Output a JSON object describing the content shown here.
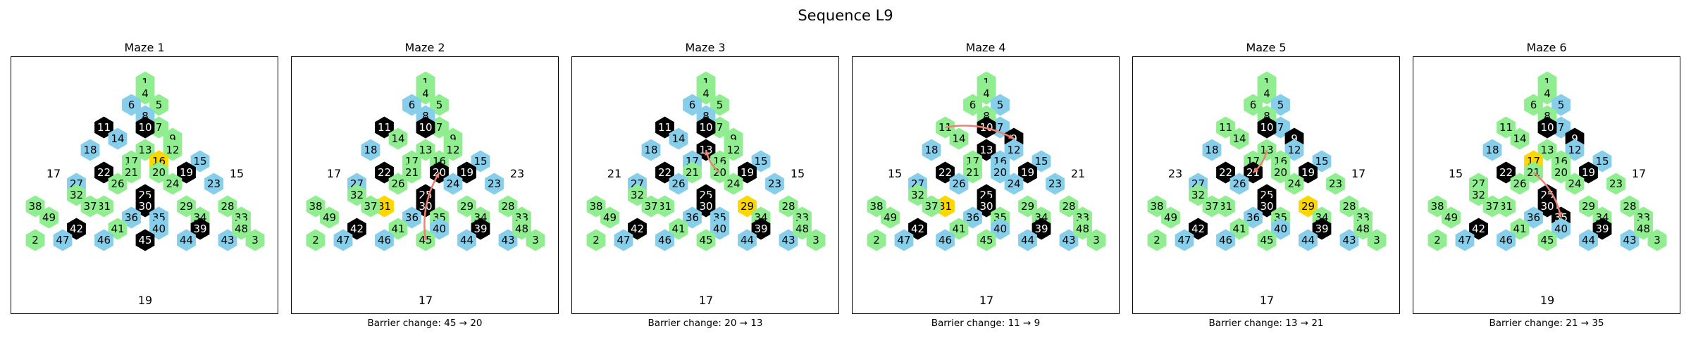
{
  "figure_title": "Sequence L9",
  "colors": {
    "green": "#90EE90",
    "blue": "#87CEEB",
    "black": "#000000",
    "yellow": "#FFD700",
    "arrow": "#F08070"
  },
  "panels": [
    {
      "title": "Maze 1",
      "caption": "",
      "side_left": "17",
      "side_right": "15",
      "side_bottom": "19",
      "blue": [
        6,
        8,
        14,
        18,
        27,
        36,
        47,
        46,
        40,
        44,
        43,
        15,
        23,
        35
      ],
      "black": [
        10,
        11,
        22,
        25,
        19,
        30,
        42,
        45,
        39
      ],
      "yellow": [
        16
      ],
      "arrow": null
    },
    {
      "title": "Maze 2",
      "caption": "Barrier change: 45 → 20",
      "side_left": "17",
      "side_right": "23",
      "side_bottom": "17",
      "blue": [
        6,
        8,
        18,
        27,
        36,
        47,
        46,
        15,
        24,
        40,
        44,
        43,
        23
      ],
      "black": [
        10,
        11,
        22,
        25,
        20,
        19,
        30,
        42,
        39
      ],
      "yellow": [
        31
      ],
      "arrow": [
        45,
        20
      ]
    },
    {
      "title": "Maze 3",
      "caption": "Barrier change: 20 → 13",
      "side_left": "21",
      "side_right": "15",
      "side_bottom": "17",
      "blue": [
        6,
        8,
        14,
        18,
        17,
        27,
        26,
        36,
        47,
        46,
        40,
        44,
        43,
        15,
        23,
        35
      ],
      "black": [
        10,
        11,
        13,
        22,
        25,
        19,
        30,
        42,
        39
      ],
      "yellow": [
        29
      ],
      "arrow": [
        20,
        13
      ]
    },
    {
      "title": "Maze 4",
      "caption": "Barrier change: 11 → 9",
      "side_left": "15",
      "side_right": "21",
      "side_bottom": "17",
      "blue": [
        5,
        7,
        18,
        12,
        16,
        15,
        20,
        24,
        23,
        27,
        26,
        36,
        47,
        46,
        40,
        44,
        43
      ],
      "black": [
        10,
        9,
        13,
        22,
        25,
        19,
        30,
        42,
        39
      ],
      "yellow": [
        31
      ],
      "arrow": [
        11,
        9
      ]
    },
    {
      "title": "Maze 5",
      "caption": "Barrier change: 13 → 21",
      "side_left": "23",
      "side_right": "17",
      "side_bottom": "17",
      "blue": [
        5,
        7,
        18,
        12,
        15,
        27,
        26,
        36,
        47,
        46,
        40,
        44,
        43
      ],
      "black": [
        10,
        9,
        22,
        21,
        25,
        19,
        30,
        42,
        39
      ],
      "yellow": [
        29
      ],
      "arrow": [
        13,
        21
      ]
    },
    {
      "title": "Maze 6",
      "caption": "Barrier change: 21 → 35",
      "side_left": "15",
      "side_right": "17",
      "side_bottom": "19",
      "blue": [
        5,
        7,
        18,
        12,
        15,
        36,
        47,
        46,
        40,
        44,
        43
      ],
      "black": [
        10,
        9,
        22,
        25,
        19,
        30,
        35,
        42,
        39
      ],
      "yellow": [
        17
      ],
      "arrow": [
        21,
        35
      ]
    }
  ]
}
